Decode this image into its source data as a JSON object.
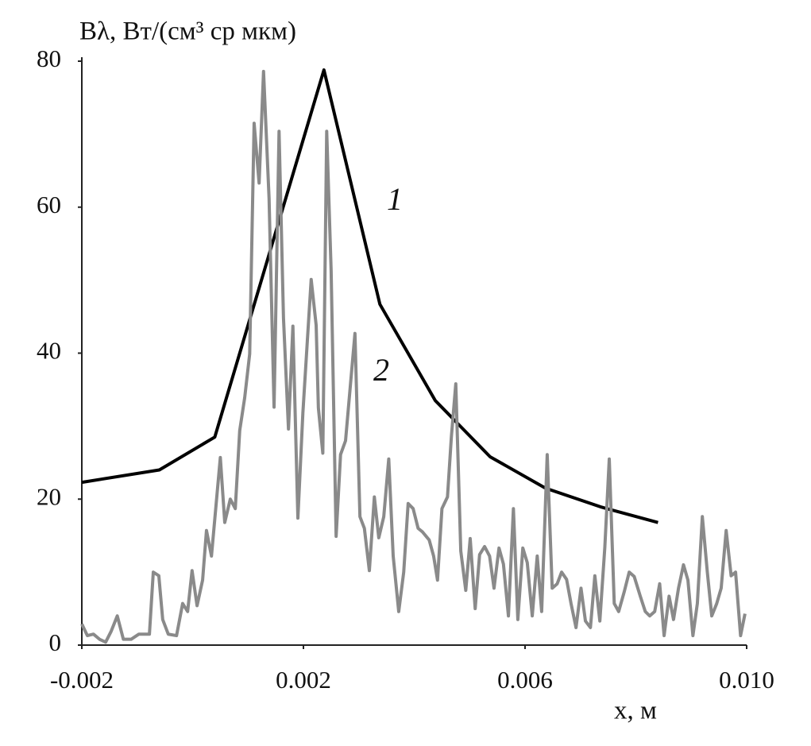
{
  "chart_data": {
    "type": "line",
    "y_label": "Bλ, Вт/(см³ ср мкм)",
    "x_label": "x, м",
    "xlim": [
      -0.002,
      0.01
    ],
    "ylim": [
      0,
      80
    ],
    "xticks": [
      -0.002,
      0.002,
      0.006,
      {
        "value": 0.01,
        "label": "0.010"
      }
    ],
    "yticks": [
      0,
      20,
      40,
      60,
      80
    ],
    "grid": false,
    "series": [
      {
        "name": "1",
        "color": "#000000",
        "x": [
          -0.002,
          -0.0006,
          0.0004,
          0.00237,
          0.00338,
          0.00438,
          0.00537,
          0.00637,
          0.00738,
          0.0084
        ],
        "values": [
          22.3,
          24,
          28.5,
          78.8,
          46.7,
          33.5,
          25.8,
          21.5,
          18.9,
          16.8
        ]
      },
      {
        "name": "2",
        "color": "#8a8a8a",
        "x": [
          -0.002,
          -0.0019,
          -0.00179,
          -0.00168,
          -0.00157,
          -0.00147,
          -0.00136,
          -0.00125,
          -0.00111,
          -0.00097,
          -0.00078,
          -0.00071,
          -0.00061,
          -0.00054,
          -0.00044,
          -0.00029,
          -0.00018,
          -9e-05,
          -1e-05,
          8e-05,
          0.00018,
          0.00025,
          0.00034,
          0.0005,
          0.00058,
          0.00068,
          0.00077,
          0.00085,
          0.00094,
          0.00103,
          0.00111,
          0.0012,
          0.00128,
          0.00138,
          0.00147,
          0.00156,
          0.00164,
          0.00173,
          0.00181,
          0.0019,
          0.00199,
          0.00207,
          0.00214,
          0.00223,
          0.00227,
          0.00235,
          0.00242,
          0.0025,
          0.00259,
          0.00267,
          0.00276,
          0.00285,
          0.00293,
          0.00302,
          0.0031,
          0.00319,
          0.00328,
          0.00336,
          0.00345,
          0.00354,
          0.00362,
          0.00372,
          0.00381,
          0.00389,
          0.00398,
          0.00407,
          0.00415,
          0.00427,
          0.00435,
          0.00442,
          0.0045,
          0.0046,
          0.00467,
          0.00475,
          0.00484,
          0.00493,
          0.00501,
          0.0051,
          0.00518,
          0.00527,
          0.00536,
          0.00544,
          0.00553,
          0.00561,
          0.0057,
          0.00579,
          0.00587,
          0.00596,
          0.00604,
          0.00613,
          0.00622,
          0.0063,
          0.0064,
          0.00649,
          0.00658,
          0.00666,
          0.00675,
          0.00683,
          0.00692,
          0.00701,
          0.00709,
          0.00718,
          0.00726,
          0.00735,
          0.00744,
          0.00752,
          0.00761,
          0.00769,
          0.00779,
          0.00788,
          0.00797,
          0.00808,
          0.00817,
          0.00825,
          0.00834,
          0.00843,
          0.00851,
          0.0086,
          0.00868,
          0.00877,
          0.00886,
          0.00894,
          0.00903,
          0.00911,
          0.0092,
          0.00929,
          0.00937,
          0.00946,
          0.00954,
          0.00963,
          0.00972,
          0.0098,
          0.00989,
          0.00997
        ],
        "values": [
          2.9,
          1.3,
          1.5,
          0.8,
          0.4,
          1.9,
          4.0,
          0.8,
          0.8,
          1.5,
          1.5,
          10.0,
          9.5,
          3.5,
          1.5,
          1.3,
          5.7,
          4.6,
          10.2,
          5.4,
          8.9,
          15.7,
          12.2,
          25.7,
          16.8,
          20.0,
          18.7,
          29.4,
          33.9,
          39.9,
          71.5,
          63.3,
          78.6,
          61.2,
          32.6,
          70.4,
          44.8,
          29.6,
          43.7,
          17.4,
          31.8,
          41.6,
          50.1,
          43.8,
          32.5,
          26.3,
          70.4,
          51.3,
          14.9,
          26.1,
          28.0,
          35.8,
          42.7,
          17.6,
          16.0,
          10.2,
          20.3,
          14.7,
          17.6,
          25.5,
          12.2,
          4.6,
          10.0,
          19.4,
          18.7,
          16.0,
          15.5,
          14.4,
          12.2,
          8.9,
          18.7,
          20.3,
          28.5,
          35.8,
          12.9,
          7.5,
          14.6,
          5.0,
          12.4,
          13.5,
          12.2,
          7.8,
          13.3,
          11.1,
          4.0,
          18.7,
          3.5,
          13.3,
          11.3,
          4.0,
          12.2,
          4.6,
          26.1,
          7.8,
          8.4,
          10.0,
          9.0,
          5.7,
          2.4,
          7.8,
          3.3,
          2.4,
          9.5,
          3.3,
          13.4,
          25.5,
          5.7,
          4.6,
          7.3,
          10.0,
          9.4,
          6.7,
          4.6,
          4.0,
          4.6,
          8.4,
          1.3,
          6.7,
          3.5,
          7.8,
          11.0,
          8.9,
          1.3,
          5.7,
          17.6,
          10.0,
          4.0,
          5.7,
          7.8,
          15.7,
          9.5,
          10.0,
          1.3,
          4.3
        ]
      }
    ]
  }
}
